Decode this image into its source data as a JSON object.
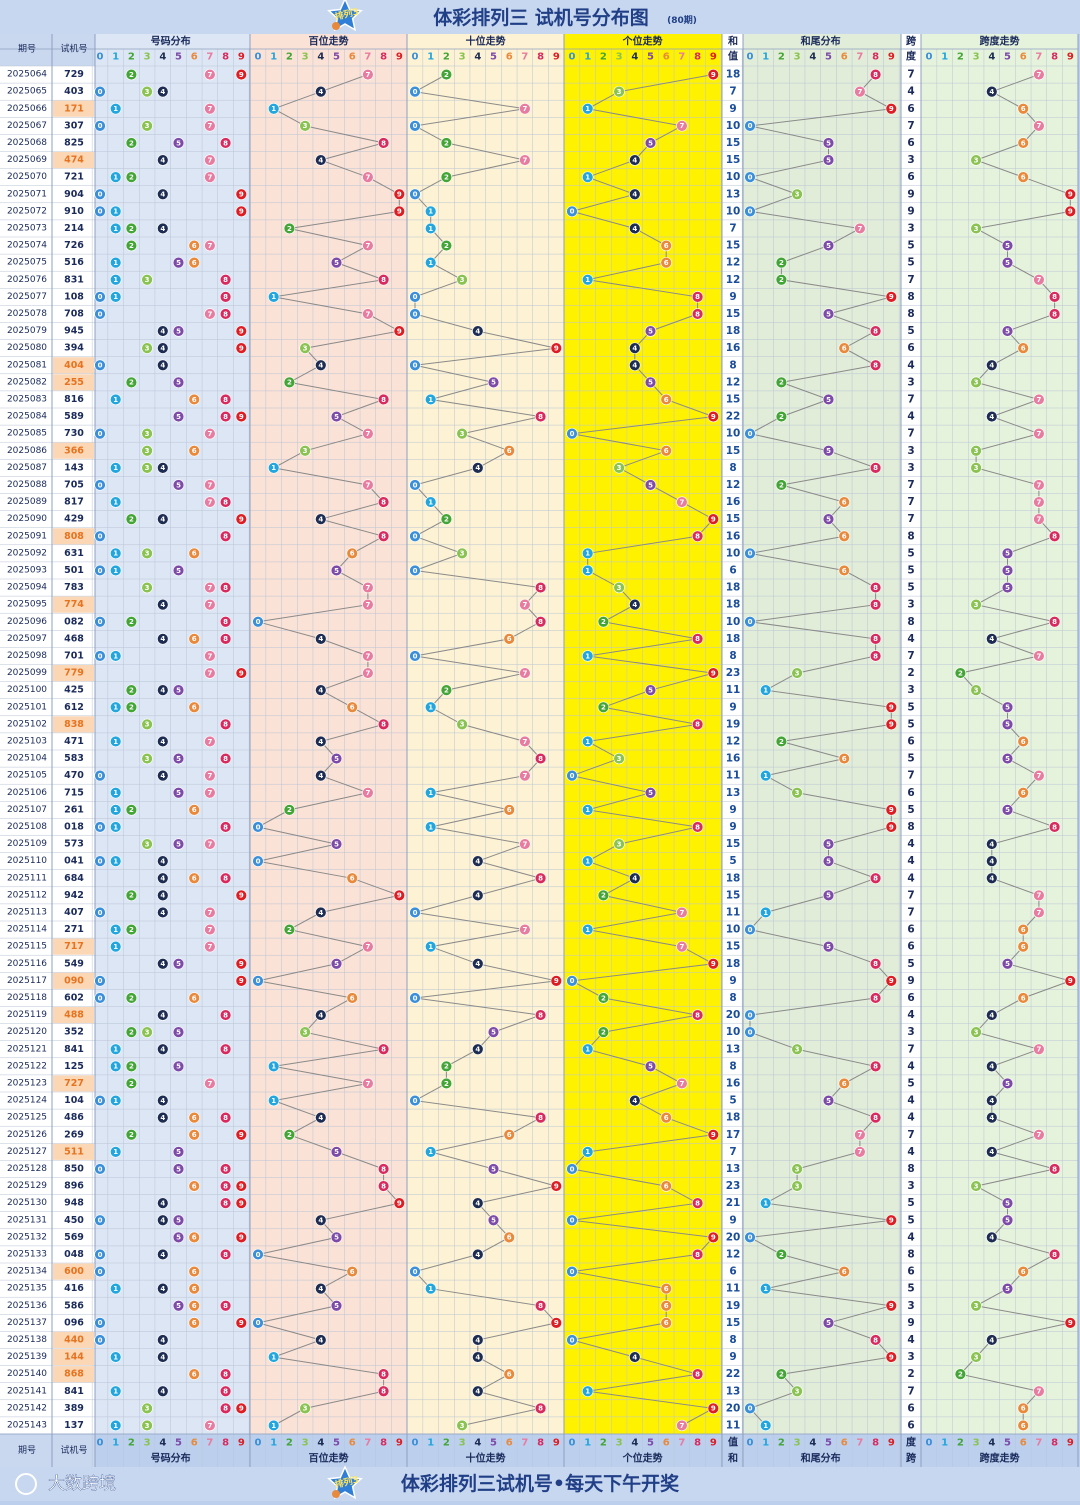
{
  "header": {
    "title": "体彩排列三 试机号分布图",
    "subtitle": "(80期)"
  },
  "footer": {
    "slogan": "体彩排列三试机号•每天下午开奖",
    "brand": "大数跨境"
  },
  "logo_text": "排列3",
  "labels": {
    "period": "期号",
    "test_number": "试机号",
    "sections": {
      "dist": "号码分布",
      "hundreds": "百位走势",
      "tens": "十位走势",
      "units": "个位走势",
      "sum_top": "和",
      "sum_bot": "值",
      "sumtail": "和尾分布",
      "span_top": "跨",
      "span_bot": "度",
      "spantrend": "跨度走势"
    }
  },
  "digits": [
    "0",
    "1",
    "2",
    "3",
    "4",
    "5",
    "6",
    "7",
    "8",
    "9"
  ],
  "colors": {
    "ball": [
      "#3a8fd8",
      "#23a6dd",
      "#43a536",
      "#8ac352",
      "#1d2c52",
      "#7d4aa8",
      "#e8893b",
      "#e87ca0",
      "#d72b5f",
      "#dc1e24"
    ],
    "dist_bg": "#dde6f4",
    "hundreds_bg": "#fbe2d6",
    "tens_bg": "#fdf2d3",
    "units_bg": "#fff200",
    "sumtail_bg": "#e1edd8",
    "span_bg": "#e6f3dc",
    "header_bg": "#bcd0ee",
    "id_highlight_bg": "#fbd7b5",
    "id_highlight_text": "#e8731f"
  },
  "chart_data": {
    "type": "table",
    "columns": [
      "period",
      "number",
      "sum",
      "span"
    ],
    "rows": [
      {
        "period": "2025064",
        "number": "729",
        "sum": "18",
        "span": "7"
      },
      {
        "period": "2025065",
        "number": "403",
        "sum": "7",
        "span": "4"
      },
      {
        "period": "2025066",
        "number": "171",
        "sum": "9",
        "span": "6"
      },
      {
        "period": "2025067",
        "number": "307",
        "sum": "10",
        "span": "7"
      },
      {
        "period": "2025068",
        "number": "825",
        "sum": "15",
        "span": "6"
      },
      {
        "period": "2025069",
        "number": "474",
        "sum": "15",
        "span": "3"
      },
      {
        "period": "2025070",
        "number": "721",
        "sum": "10",
        "span": "6"
      },
      {
        "period": "2025071",
        "number": "904",
        "sum": "13",
        "span": "9"
      },
      {
        "period": "2025072",
        "number": "910",
        "sum": "10",
        "span": "9"
      },
      {
        "period": "2025073",
        "number": "214",
        "sum": "7",
        "span": "3"
      },
      {
        "period": "2025074",
        "number": "726",
        "sum": "15",
        "span": "5"
      },
      {
        "period": "2025075",
        "number": "516",
        "sum": "12",
        "span": "5"
      },
      {
        "period": "2025076",
        "number": "831",
        "sum": "12",
        "span": "7"
      },
      {
        "period": "2025077",
        "number": "108",
        "sum": "9",
        "span": "8"
      },
      {
        "period": "2025078",
        "number": "708",
        "sum": "15",
        "span": "8"
      },
      {
        "period": "2025079",
        "number": "945",
        "sum": "18",
        "span": "5"
      },
      {
        "period": "2025080",
        "number": "394",
        "sum": "16",
        "span": "6"
      },
      {
        "period": "2025081",
        "number": "404",
        "sum": "8",
        "span": "4"
      },
      {
        "period": "2025082",
        "number": "255",
        "sum": "12",
        "span": "3"
      },
      {
        "period": "2025083",
        "number": "816",
        "sum": "15",
        "span": "7"
      },
      {
        "period": "2025084",
        "number": "589",
        "sum": "22",
        "span": "4"
      },
      {
        "period": "2025085",
        "number": "730",
        "sum": "10",
        "span": "7"
      },
      {
        "period": "2025086",
        "number": "366",
        "sum": "15",
        "span": "3"
      },
      {
        "period": "2025087",
        "number": "143",
        "sum": "8",
        "span": "3"
      },
      {
        "period": "2025088",
        "number": "705",
        "sum": "12",
        "span": "7"
      },
      {
        "period": "2025089",
        "number": "817",
        "sum": "16",
        "span": "7"
      },
      {
        "period": "2025090",
        "number": "429",
        "sum": "15",
        "span": "7"
      },
      {
        "period": "2025091",
        "number": "808",
        "sum": "16",
        "span": "8"
      },
      {
        "period": "2025092",
        "number": "631",
        "sum": "10",
        "span": "5"
      },
      {
        "period": "2025093",
        "number": "501",
        "sum": "6",
        "span": "5"
      },
      {
        "period": "2025094",
        "number": "783",
        "sum": "18",
        "span": "5"
      },
      {
        "period": "2025095",
        "number": "774",
        "sum": "18",
        "span": "3"
      },
      {
        "period": "2025096",
        "number": "082",
        "sum": "10",
        "span": "8"
      },
      {
        "period": "2025097",
        "number": "468",
        "sum": "18",
        "span": "4"
      },
      {
        "period": "2025098",
        "number": "701",
        "sum": "8",
        "span": "7"
      },
      {
        "period": "2025099",
        "number": "779",
        "sum": "23",
        "span": "2"
      },
      {
        "period": "2025100",
        "number": "425",
        "sum": "11",
        "span": "3"
      },
      {
        "period": "2025101",
        "number": "612",
        "sum": "9",
        "span": "5"
      },
      {
        "period": "2025102",
        "number": "838",
        "sum": "19",
        "span": "5"
      },
      {
        "period": "2025103",
        "number": "471",
        "sum": "12",
        "span": "6"
      },
      {
        "period": "2025104",
        "number": "583",
        "sum": "16",
        "span": "5"
      },
      {
        "period": "2025105",
        "number": "470",
        "sum": "11",
        "span": "7"
      },
      {
        "period": "2025106",
        "number": "715",
        "sum": "13",
        "span": "6"
      },
      {
        "period": "2025107",
        "number": "261",
        "sum": "9",
        "span": "5"
      },
      {
        "period": "2025108",
        "number": "018",
        "sum": "9",
        "span": "8"
      },
      {
        "period": "2025109",
        "number": "573",
        "sum": "15",
        "span": "4"
      },
      {
        "period": "2025110",
        "number": "041",
        "sum": "5",
        "span": "4"
      },
      {
        "period": "2025111",
        "number": "684",
        "sum": "18",
        "span": "4"
      },
      {
        "period": "2025112",
        "number": "942",
        "sum": "15",
        "span": "7"
      },
      {
        "period": "2025113",
        "number": "407",
        "sum": "11",
        "span": "7"
      },
      {
        "period": "2025114",
        "number": "271",
        "sum": "10",
        "span": "6"
      },
      {
        "period": "2025115",
        "number": "717",
        "sum": "15",
        "span": "6"
      },
      {
        "period": "2025116",
        "number": "549",
        "sum": "18",
        "span": "5"
      },
      {
        "period": "2025117",
        "number": "090",
        "sum": "9",
        "span": "9"
      },
      {
        "period": "2025118",
        "number": "602",
        "sum": "8",
        "span": "6"
      },
      {
        "period": "2025119",
        "number": "488",
        "sum": "20",
        "span": "4"
      },
      {
        "period": "2025120",
        "number": "352",
        "sum": "10",
        "span": "3"
      },
      {
        "period": "2025121",
        "number": "841",
        "sum": "13",
        "span": "7"
      },
      {
        "period": "2025122",
        "number": "125",
        "sum": "8",
        "span": "4"
      },
      {
        "period": "2025123",
        "number": "727",
        "sum": "16",
        "span": "5"
      },
      {
        "period": "2025124",
        "number": "104",
        "sum": "5",
        "span": "4"
      },
      {
        "period": "2025125",
        "number": "486",
        "sum": "18",
        "span": "4"
      },
      {
        "period": "2025126",
        "number": "269",
        "sum": "17",
        "span": "7"
      },
      {
        "period": "2025127",
        "number": "511",
        "sum": "7",
        "span": "4"
      },
      {
        "period": "2025128",
        "number": "850",
        "sum": "13",
        "span": "8"
      },
      {
        "period": "2025129",
        "number": "896",
        "sum": "23",
        "span": "3"
      },
      {
        "period": "2025130",
        "number": "948",
        "sum": "21",
        "span": "5"
      },
      {
        "period": "2025131",
        "number": "450",
        "sum": "9",
        "span": "5"
      },
      {
        "period": "2025132",
        "number": "569",
        "sum": "20",
        "span": "4"
      },
      {
        "period": "2025133",
        "number": "048",
        "sum": "12",
        "span": "8"
      },
      {
        "period": "2025134",
        "number": "600",
        "sum": "6",
        "span": "6"
      },
      {
        "period": "2025135",
        "number": "416",
        "sum": "11",
        "span": "5"
      },
      {
        "period": "2025136",
        "number": "586",
        "sum": "19",
        "span": "3"
      },
      {
        "period": "2025137",
        "number": "096",
        "sum": "15",
        "span": "9"
      },
      {
        "period": "2025138",
        "number": "440",
        "sum": "8",
        "span": "4"
      },
      {
        "period": "2025139",
        "number": "144",
        "sum": "9",
        "span": "3"
      },
      {
        "period": "2025140",
        "number": "868",
        "sum": "22",
        "span": "2"
      },
      {
        "period": "2025141",
        "number": "841",
        "sum": "13",
        "span": "7"
      },
      {
        "period": "2025142",
        "number": "389",
        "sum": "20",
        "span": "6"
      },
      {
        "period": "2025143",
        "number": "137",
        "sum": "11",
        "span": "6"
      }
    ]
  }
}
